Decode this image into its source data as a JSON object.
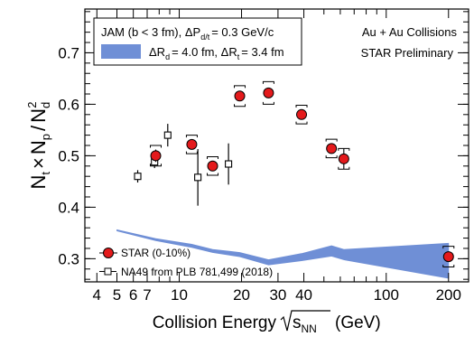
{
  "chart_data": {
    "type": "scatter",
    "title": "",
    "xlabel": "Collision Energy",
    "xlabel_sqrt": "s",
    "xlabel_sub": "NN",
    "xlabel_unit": "(GeV)",
    "ylabel_parts": {
      "n1": "N",
      "n1_sub": "t",
      "times": "×",
      "n2": "N",
      "n2_sub": "p",
      "slash": "/",
      "n3": "N",
      "n3_sub": "d",
      "n3_sup": "2"
    },
    "x_scale": "log",
    "xlim": [
      3.5,
      250
    ],
    "ylim": [
      0.255,
      0.785
    ],
    "x_ticks": [
      {
        "value": 4,
        "label": "4"
      },
      {
        "value": 5,
        "label": "5"
      },
      {
        "value": 6,
        "label": "6"
      },
      {
        "value": 7,
        "label": "7"
      },
      {
        "value": 10,
        "label": "10"
      },
      {
        "value": 20,
        "label": "20"
      },
      {
        "value": 30,
        "label": "30"
      },
      {
        "value": 40,
        "label": "40"
      },
      {
        "value": 100,
        "label": "100"
      },
      {
        "value": 200,
        "label": "200"
      }
    ],
    "x_minor_ticks": [
      8,
      9,
      50,
      60,
      70,
      80,
      90
    ],
    "y_ticks": [
      {
        "value": 0.3,
        "label": "0.3"
      },
      {
        "value": 0.4,
        "label": "0.4"
      },
      {
        "value": 0.5,
        "label": "0.5"
      },
      {
        "value": 0.6,
        "label": "0.6"
      },
      {
        "value": 0.7,
        "label": "0.7"
      }
    ],
    "y_minor_step": 0.02,
    "annotations": [
      "Au + Au Collisions",
      "STAR Preliminary"
    ],
    "band_legend": {
      "line1": "JAM (b < 3 fm), ΔP",
      "line1_sub": "d/t",
      "line1_tail": "= 0.3 GeV/c",
      "line2_a": "ΔR",
      "line2_a_sub": "d",
      "line2_b": "= 4.0 fm, ΔR",
      "line2_b_sub": "t",
      "line2_c": "= 3.4 fm"
    },
    "points_legend": {
      "star": "STAR  (0-10%)",
      "na49": "NA49 from PLB 781,499 (2018)"
    },
    "band_color": "#6f8fd6",
    "star_color": "#e41a1c",
    "band": [
      {
        "x": 5.0,
        "lo": 0.354,
        "hi": 0.356
      },
      {
        "x": 7.7,
        "lo": 0.335,
        "hi": 0.339
      },
      {
        "x": 11.5,
        "lo": 0.322,
        "hi": 0.328
      },
      {
        "x": 14.5,
        "lo": 0.312,
        "hi": 0.318
      },
      {
        "x": 19.6,
        "lo": 0.304,
        "hi": 0.312
      },
      {
        "x": 27,
        "lo": 0.288,
        "hi": 0.298
      },
      {
        "x": 39,
        "lo": 0.296,
        "hi": 0.31
      },
      {
        "x": 54.4,
        "lo": 0.305,
        "hi": 0.325
      },
      {
        "x": 62.4,
        "lo": 0.298,
        "hi": 0.318
      },
      {
        "x": 200,
        "lo": 0.262,
        "hi": 0.33
      }
    ],
    "series": [
      {
        "marker": "filled-circle",
        "points": [
          {
            "x": 7.7,
            "y": 0.5,
            "stat": 0.012,
            "sys": 0.02
          },
          {
            "x": 11.5,
            "y": 0.522,
            "stat": 0.01,
            "sys": 0.018
          },
          {
            "x": 14.5,
            "y": 0.48,
            "stat": 0.01,
            "sys": 0.018
          },
          {
            "x": 19.6,
            "y": 0.616,
            "stat": 0.01,
            "sys": 0.02
          },
          {
            "x": 27,
            "y": 0.622,
            "stat": 0.01,
            "sys": 0.022
          },
          {
            "x": 39,
            "y": 0.58,
            "stat": 0.01,
            "sys": 0.018
          },
          {
            "x": 54.4,
            "y": 0.514,
            "stat": 0.01,
            "sys": 0.018
          },
          {
            "x": 62.4,
            "y": 0.494,
            "stat": 0.02,
            "sys": 0.02
          },
          {
            "x": 200,
            "y": 0.304,
            "stat": 0.006,
            "sys": 0.02
          }
        ]
      },
      {
        "marker": "open-square",
        "points": [
          {
            "x": 6.3,
            "y": 0.46,
            "err": 0.012
          },
          {
            "x": 7.6,
            "y": 0.488,
            "err": 0.012
          },
          {
            "x": 8.8,
            "y": 0.54,
            "err": 0.022
          },
          {
            "x": 12.3,
            "y": 0.458,
            "err": 0.055
          },
          {
            "x": 17.3,
            "y": 0.484,
            "err": 0.04
          }
        ]
      }
    ]
  }
}
